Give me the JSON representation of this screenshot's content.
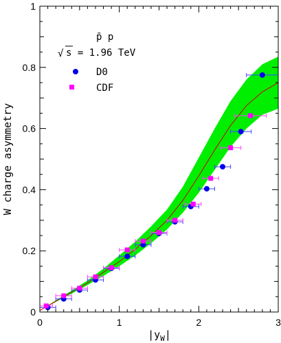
{
  "chart_data": {
    "type": "scatter",
    "xlabel": "|y",
    "xlabel_sub": "W",
    "xlabel_close": "|",
    "ylabel": "W charge asymmetry",
    "xlim": [
      0,
      3
    ],
    "ylim": [
      0,
      1
    ],
    "x_ticks": [
      "0",
      "1",
      "2",
      "3"
    ],
    "y_ticks": [
      "0",
      "0.2",
      "0.4",
      "0.6",
      "0.8",
      "1"
    ],
    "legend": {
      "process": "p̄ p",
      "energy_prefix": "s = 1.96 TeV",
      "sqrt_symbol": "√",
      "entries": [
        "D0",
        "CDF"
      ]
    },
    "colors": {
      "d0_marker": "#0000ee",
      "d0_errorbar": "#4444ff",
      "cdf_marker": "#ff00ff",
      "cdf_errorbar": "#ff44ff",
      "band_fill": "#00ee00",
      "central_line": "#cc0000"
    },
    "theory_band": {
      "x": [
        0.0,
        0.2,
        0.4,
        0.6,
        0.8,
        1.0,
        1.2,
        1.4,
        1.6,
        1.8,
        2.0,
        2.2,
        2.4,
        2.6,
        2.8,
        3.0
      ],
      "central": [
        0.005,
        0.035,
        0.065,
        0.095,
        0.13,
        0.165,
        0.205,
        0.25,
        0.3,
        0.365,
        0.445,
        0.53,
        0.61,
        0.675,
        0.72,
        0.75
      ],
      "lower": [
        0.005,
        0.033,
        0.06,
        0.088,
        0.118,
        0.15,
        0.185,
        0.225,
        0.27,
        0.325,
        0.39,
        0.465,
        0.54,
        0.6,
        0.645,
        0.665
      ],
      "upper": [
        0.005,
        0.038,
        0.07,
        0.103,
        0.142,
        0.185,
        0.23,
        0.28,
        0.335,
        0.41,
        0.505,
        0.6,
        0.69,
        0.76,
        0.81,
        0.835
      ]
    },
    "series": [
      {
        "name": "D0",
        "marker": "circle",
        "points": [
          {
            "x": 0.1,
            "y": 0.015,
            "xerr": 0.1
          },
          {
            "x": 0.3,
            "y": 0.043,
            "xerr": 0.1
          },
          {
            "x": 0.5,
            "y": 0.072,
            "xerr": 0.1
          },
          {
            "x": 0.7,
            "y": 0.105,
            "xerr": 0.1
          },
          {
            "x": 0.9,
            "y": 0.143,
            "xerr": 0.1
          },
          {
            "x": 1.1,
            "y": 0.182,
            "xerr": 0.1
          },
          {
            "x": 1.3,
            "y": 0.22,
            "xerr": 0.1
          },
          {
            "x": 1.5,
            "y": 0.257,
            "xerr": 0.1
          },
          {
            "x": 1.7,
            "y": 0.295,
            "xerr": 0.1
          },
          {
            "x": 1.9,
            "y": 0.345,
            "xerr": 0.1
          },
          {
            "x": 2.1,
            "y": 0.403,
            "xerr": 0.1
          },
          {
            "x": 2.3,
            "y": 0.475,
            "xerr": 0.1
          },
          {
            "x": 2.53,
            "y": 0.59,
            "xerr": 0.13
          },
          {
            "x": 2.8,
            "y": 0.775,
            "xerr": 0.2
          }
        ]
      },
      {
        "name": "CDF",
        "marker": "square",
        "points": [
          {
            "x": 0.08,
            "y": 0.02,
            "xerr": 0.08
          },
          {
            "x": 0.3,
            "y": 0.053,
            "xerr": 0.1
          },
          {
            "x": 0.5,
            "y": 0.078,
            "xerr": 0.1
          },
          {
            "x": 0.7,
            "y": 0.115,
            "xerr": 0.1
          },
          {
            "x": 0.9,
            "y": 0.145,
            "xerr": 0.1
          },
          {
            "x": 1.1,
            "y": 0.203,
            "xerr": 0.1
          },
          {
            "x": 1.3,
            "y": 0.232,
            "xerr": 0.1
          },
          {
            "x": 1.5,
            "y": 0.26,
            "xerr": 0.1
          },
          {
            "x": 1.7,
            "y": 0.3,
            "xerr": 0.1
          },
          {
            "x": 1.93,
            "y": 0.353,
            "xerr": 0.1
          },
          {
            "x": 2.15,
            "y": 0.437,
            "xerr": 0.1
          },
          {
            "x": 2.4,
            "y": 0.537,
            "xerr": 0.13
          },
          {
            "x": 2.65,
            "y": 0.642,
            "xerr": 0.2
          }
        ]
      }
    ]
  }
}
